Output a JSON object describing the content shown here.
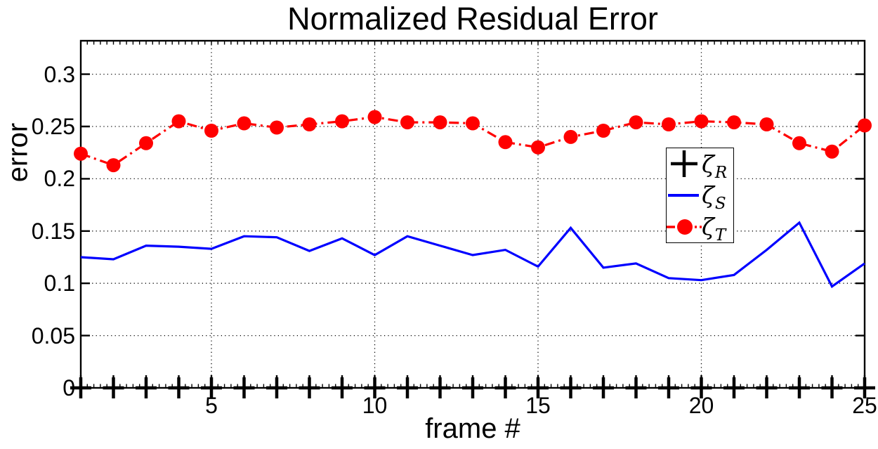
{
  "chart_data": {
    "type": "line",
    "title": "Normalized Residual Error",
    "xlabel": "frame #",
    "ylabel": "error",
    "grid": "dotted",
    "legend_position": "middle-right",
    "xlim": [
      1,
      25
    ],
    "ylim": [
      0,
      0.332
    ],
    "x": [
      1,
      2,
      3,
      4,
      5,
      6,
      7,
      8,
      9,
      10,
      11,
      12,
      13,
      14,
      15,
      16,
      17,
      18,
      19,
      20,
      21,
      22,
      23,
      24,
      25
    ],
    "x_axis": {
      "labeled_ticks": [
        5,
        10,
        15,
        20,
        25
      ],
      "tick_every": 1,
      "minor_tick_every": 0.2
    },
    "y_axis": {
      "ticks": [
        {
          "value": 0,
          "label": "0"
        },
        {
          "value": 0.05,
          "label": "0.05"
        },
        {
          "value": 0.1,
          "label": "0.1"
        },
        {
          "value": 0.15,
          "label": "0.15"
        },
        {
          "value": 0.2,
          "label": "0.2"
        },
        {
          "value": 0.25,
          "label": "0.25"
        },
        {
          "value": 0.3,
          "label": "0.3"
        }
      ]
    },
    "series": [
      {
        "id": "zeta-r",
        "name": "ζ_R",
        "color": "#000000",
        "line": "none",
        "marker": "plus",
        "values": [
          0,
          0,
          0,
          0,
          0,
          0,
          0,
          0,
          0,
          0,
          0,
          0,
          0,
          0,
          0,
          0,
          0,
          0,
          0,
          0,
          0,
          0,
          0,
          0,
          0
        ]
      },
      {
        "id": "zeta-s",
        "name": "ζ_S",
        "color": "#0000ff",
        "line": "solid",
        "marker": "none",
        "values": [
          0.125,
          0.123,
          0.136,
          0.135,
          0.133,
          0.145,
          0.144,
          0.131,
          0.143,
          0.127,
          0.145,
          0.136,
          0.127,
          0.132,
          0.116,
          0.153,
          0.115,
          0.119,
          0.105,
          0.103,
          0.108,
          0.132,
          0.158,
          0.097,
          0.119
        ]
      },
      {
        "id": "zeta-t",
        "name": "ζ_T",
        "color": "#ff0000",
        "line": "dash-dot",
        "marker": "circle",
        "values": [
          0.224,
          0.213,
          0.234,
          0.255,
          0.246,
          0.253,
          0.249,
          0.252,
          0.255,
          0.259,
          0.254,
          0.254,
          0.253,
          0.235,
          0.23,
          0.24,
          0.246,
          0.254,
          0.252,
          0.255,
          0.254,
          0.252,
          0.234,
          0.226,
          0.251
        ]
      }
    ],
    "legend": {
      "entries": [
        {
          "symbol": "ζ",
          "sub": "R"
        },
        {
          "symbol": "ζ",
          "sub": "S"
        },
        {
          "symbol": "ζ",
          "sub": "T"
        }
      ]
    }
  }
}
